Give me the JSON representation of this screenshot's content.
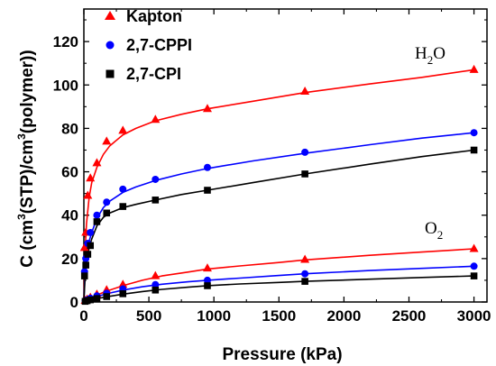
{
  "chart_data": {
    "type": "scatter",
    "xlabel": "Pressure (kPa)",
    "ylabel": "C (cm³(STP)/cm³(polymer))",
    "ylabel_parts": [
      "C (cm",
      "3",
      "(STP)/cm",
      "3",
      "(polymer))"
    ],
    "xlim": [
      0,
      3100
    ],
    "ylim": [
      0,
      135
    ],
    "xticks": [
      0,
      500,
      1000,
      1500,
      2000,
      2500,
      3000
    ],
    "yticks": [
      0,
      20,
      40,
      60,
      80,
      100,
      120
    ],
    "legend_position": "top-left",
    "legend": [
      "Kapton",
      "2,7-CPPI",
      "2,7-CPI"
    ],
    "annotations": {
      "h2o": {
        "main": "H",
        "sub": "2",
        "tail": "O"
      },
      "o2": {
        "main": "O",
        "sub": "2"
      }
    },
    "series": [
      {
        "name": "Kapton",
        "group": "H2O",
        "marker": "triangle",
        "color": "#ff0000",
        "points": [
          [
            5,
            25
          ],
          [
            15,
            32
          ],
          [
            30,
            49
          ],
          [
            50,
            57
          ],
          [
            100,
            64
          ],
          [
            175,
            74
          ],
          [
            300,
            79
          ],
          [
            550,
            84
          ],
          [
            950,
            89
          ],
          [
            1700,
            97
          ],
          [
            3000,
            107
          ]
        ],
        "fit": [
          [
            0,
            0
          ],
          [
            10,
            24
          ],
          [
            20,
            36
          ],
          [
            40,
            48
          ],
          [
            60,
            55
          ],
          [
            100,
            62
          ],
          [
            150,
            68
          ],
          [
            200,
            72
          ],
          [
            300,
            77
          ],
          [
            400,
            80
          ],
          [
            550,
            83.5
          ],
          [
            750,
            86.5
          ],
          [
            950,
            89
          ],
          [
            1300,
            92.5
          ],
          [
            1700,
            96.5
          ],
          [
            2200,
            100.5
          ],
          [
            2600,
            103.5
          ],
          [
            3000,
            107
          ]
        ]
      },
      {
        "name": "2,7-CPPI",
        "group": "H2O",
        "marker": "circle",
        "color": "#0000ff",
        "points": [
          [
            5,
            14
          ],
          [
            15,
            20
          ],
          [
            30,
            27
          ],
          [
            50,
            32
          ],
          [
            100,
            40
          ],
          [
            175,
            46
          ],
          [
            300,
            52
          ],
          [
            550,
            56.5
          ],
          [
            950,
            62
          ],
          [
            1700,
            69
          ],
          [
            3000,
            78
          ]
        ],
        "fit": [
          [
            0,
            0
          ],
          [
            10,
            14
          ],
          [
            20,
            20
          ],
          [
            40,
            28
          ],
          [
            60,
            32
          ],
          [
            100,
            38.5
          ],
          [
            150,
            43.5
          ],
          [
            200,
            46.5
          ],
          [
            300,
            50.5
          ],
          [
            400,
            53
          ],
          [
            550,
            56
          ],
          [
            750,
            59
          ],
          [
            950,
            61.5
          ],
          [
            1300,
            65
          ],
          [
            1700,
            68.5
          ],
          [
            2200,
            72.5
          ],
          [
            2600,
            75.5
          ],
          [
            3000,
            78
          ]
        ]
      },
      {
        "name": "2,7-CPI",
        "group": "H2O",
        "marker": "square",
        "color": "#000000",
        "points": [
          [
            5,
            12
          ],
          [
            15,
            17
          ],
          [
            30,
            22
          ],
          [
            50,
            26
          ],
          [
            100,
            37
          ],
          [
            175,
            41
          ],
          [
            300,
            44
          ],
          [
            550,
            47
          ],
          [
            950,
            51.5
          ],
          [
            1700,
            59
          ],
          [
            3000,
            70
          ]
        ],
        "fit": [
          [
            0,
            0
          ],
          [
            10,
            12
          ],
          [
            20,
            18
          ],
          [
            40,
            25
          ],
          [
            60,
            29
          ],
          [
            100,
            35
          ],
          [
            150,
            39
          ],
          [
            200,
            41
          ],
          [
            300,
            43.5
          ],
          [
            400,
            45
          ],
          [
            550,
            47
          ],
          [
            750,
            49.5
          ],
          [
            950,
            51.5
          ],
          [
            1300,
            55
          ],
          [
            1700,
            59
          ],
          [
            2200,
            63.5
          ],
          [
            2600,
            67
          ],
          [
            3000,
            70
          ]
        ]
      },
      {
        "name": "Kapton",
        "group": "O2",
        "marker": "triangle",
        "color": "#ff0000",
        "points": [
          [
            10,
            0.6
          ],
          [
            25,
            1.2
          ],
          [
            50,
            2
          ],
          [
            100,
            3.5
          ],
          [
            175,
            5.5
          ],
          [
            300,
            8
          ],
          [
            550,
            12
          ],
          [
            950,
            15.5
          ],
          [
            1700,
            19.5
          ],
          [
            3000,
            24.5
          ]
        ],
        "fit": [
          [
            0,
            0
          ],
          [
            50,
            1.8
          ],
          [
            100,
            3.2
          ],
          [
            175,
            5
          ],
          [
            300,
            7.5
          ],
          [
            450,
            10
          ],
          [
            600,
            12
          ],
          [
            800,
            13.8
          ],
          [
            950,
            15.2
          ],
          [
            1200,
            16.6
          ],
          [
            1500,
            18.2
          ],
          [
            1700,
            19.4
          ],
          [
            2200,
            21.5
          ],
          [
            2600,
            23
          ],
          [
            3000,
            24.5
          ]
        ]
      },
      {
        "name": "2,7-CPPI",
        "group": "O2",
        "marker": "circle",
        "color": "#0000ff",
        "points": [
          [
            10,
            0.5
          ],
          [
            25,
            1
          ],
          [
            50,
            1.7
          ],
          [
            100,
            2.8
          ],
          [
            175,
            4
          ],
          [
            300,
            6
          ],
          [
            550,
            8
          ],
          [
            950,
            10
          ],
          [
            1700,
            13
          ],
          [
            3000,
            16.5
          ]
        ],
        "fit": [
          [
            0,
            0
          ],
          [
            50,
            1.5
          ],
          [
            100,
            2.5
          ],
          [
            175,
            3.8
          ],
          [
            300,
            5.5
          ],
          [
            450,
            7
          ],
          [
            600,
            8.2
          ],
          [
            800,
            9.3
          ],
          [
            950,
            10
          ],
          [
            1200,
            11
          ],
          [
            1500,
            12.2
          ],
          [
            1700,
            13
          ],
          [
            2200,
            14.5
          ],
          [
            2600,
            15.5
          ],
          [
            3000,
            16.5
          ]
        ]
      },
      {
        "name": "2,7-CPI",
        "group": "O2",
        "marker": "square",
        "color": "#000000",
        "points": [
          [
            10,
            0.3
          ],
          [
            25,
            0.6
          ],
          [
            50,
            1
          ],
          [
            100,
            1.6
          ],
          [
            175,
            2.5
          ],
          [
            300,
            3.8
          ],
          [
            550,
            5.5
          ],
          [
            950,
            7.5
          ],
          [
            1700,
            9.5
          ],
          [
            3000,
            12
          ]
        ],
        "fit": [
          [
            0,
            0
          ],
          [
            50,
            0.9
          ],
          [
            100,
            1.5
          ],
          [
            175,
            2.4
          ],
          [
            300,
            3.6
          ],
          [
            450,
            4.8
          ],
          [
            600,
            5.8
          ],
          [
            800,
            6.8
          ],
          [
            950,
            7.5
          ],
          [
            1200,
            8.3
          ],
          [
            1500,
            9
          ],
          [
            1700,
            9.5
          ],
          [
            2200,
            10.5
          ],
          [
            2600,
            11.3
          ],
          [
            3000,
            12
          ]
        ]
      }
    ]
  }
}
